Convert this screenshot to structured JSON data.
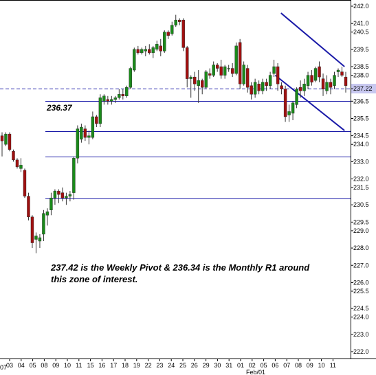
{
  "chart_data": {
    "type": "candlestick",
    "colors": {
      "up": "#1a8a1a",
      "down": "#a01010",
      "level_line": "#1a1aa8",
      "channel": "#1a1aa8",
      "pivot_line": "#1a1aa8",
      "price_box": "#c8c8f0"
    },
    "ylim": [
      221.7,
      242.3
    ],
    "y_ticks": [
      "242.0",
      "241.0",
      "240.5",
      "239.5",
      "238.5",
      "238.0",
      "237.22",
      "236.5",
      "235.5",
      "234.5",
      "234.0",
      "233.0",
      "232.0",
      "231.5",
      "230.5",
      "229.5",
      "229.0",
      "228.0",
      "227.0",
      "226.0",
      "225.5",
      "224.5",
      "224.0",
      "223.0",
      "222.0"
    ],
    "x_ticks": [
      "03",
      "04",
      "05",
      "08",
      "09",
      "10",
      "11",
      "15",
      "16",
      "17",
      "18",
      "19",
      "22",
      "23",
      "24",
      "25",
      "26",
      "29",
      "30",
      "31",
      "01",
      "02",
      "05",
      "06",
      "07",
      "08",
      "09",
      "10",
      "11"
    ],
    "x_tick_edge_left": "07",
    "x_tick_month": "Feb/01",
    "current_price": 237.22,
    "levels": [
      236.5,
      234.75,
      233.3,
      230.85
    ],
    "level_label": "236.37",
    "annotation_lines": [
      "237.42 is the Weekly Pivot & 236.34 is the Monthly R1 around",
      "this zone of interest."
    ],
    "channel": {
      "upper": [
        [
          23.5,
          241.6
        ],
        [
          29.0,
          238.5
        ]
      ],
      "lower": [
        [
          23.0,
          238.0
        ],
        [
          29.0,
          234.8
        ]
      ]
    },
    "candles": [
      {
        "o": 234.5,
        "h": 234.7,
        "l": 233.3,
        "c": 234.2
      },
      {
        "o": 234.0,
        "h": 234.7,
        "l": 233.9,
        "c": 234.6
      },
      {
        "o": 234.6,
        "h": 234.7,
        "l": 233.6,
        "c": 233.7
      },
      {
        "o": 233.6,
        "h": 233.7,
        "l": 233.0,
        "c": 233.1
      },
      {
        "o": 233.1,
        "h": 233.2,
        "l": 232.6,
        "c": 232.7
      },
      {
        "o": 232.6,
        "h": 233.2,
        "l": 232.4,
        "c": 232.8
      },
      {
        "o": 232.5,
        "h": 232.6,
        "l": 230.9,
        "c": 231.0
      },
      {
        "o": 231.0,
        "h": 231.2,
        "l": 229.6,
        "c": 229.8
      },
      {
        "o": 229.8,
        "h": 229.9,
        "l": 228.0,
        "c": 228.3
      },
      {
        "o": 228.5,
        "h": 228.9,
        "l": 227.7,
        "c": 228.7
      },
      {
        "o": 228.4,
        "h": 228.8,
        "l": 228.0,
        "c": 228.6
      },
      {
        "o": 228.8,
        "h": 230.2,
        "l": 228.4,
        "c": 230.0
      },
      {
        "o": 229.9,
        "h": 230.3,
        "l": 229.3,
        "c": 230.1
      },
      {
        "o": 230.2,
        "h": 231.2,
        "l": 229.9,
        "c": 230.9
      },
      {
        "o": 230.9,
        "h": 231.4,
        "l": 230.5,
        "c": 231.3
      },
      {
        "o": 231.3,
        "h": 231.4,
        "l": 230.6,
        "c": 231.1
      },
      {
        "o": 231.2,
        "h": 231.5,
        "l": 230.7,
        "c": 230.9
      },
      {
        "o": 230.9,
        "h": 231.2,
        "l": 230.5,
        "c": 231.0
      },
      {
        "o": 231.0,
        "h": 231.3,
        "l": 230.7,
        "c": 231.1
      },
      {
        "o": 231.2,
        "h": 233.3,
        "l": 230.8,
        "c": 233.2
      },
      {
        "o": 233.2,
        "h": 235.1,
        "l": 232.9,
        "c": 234.9
      },
      {
        "o": 234.3,
        "h": 235.2,
        "l": 234.1,
        "c": 235.0
      },
      {
        "o": 234.9,
        "h": 235.1,
        "l": 234.2,
        "c": 234.4
      },
      {
        "o": 234.4,
        "h": 234.8,
        "l": 234.0,
        "c": 234.5
      },
      {
        "o": 234.4,
        "h": 235.9,
        "l": 234.3,
        "c": 235.6
      },
      {
        "o": 235.6,
        "h": 235.7,
        "l": 235.0,
        "c": 235.2
      },
      {
        "o": 235.2,
        "h": 236.9,
        "l": 235.0,
        "c": 236.7
      },
      {
        "o": 236.5,
        "h": 236.9,
        "l": 236.3,
        "c": 236.8
      },
      {
        "o": 236.6,
        "h": 236.8,
        "l": 236.3,
        "c": 236.5
      },
      {
        "o": 236.5,
        "h": 236.8,
        "l": 236.3,
        "c": 236.6
      },
      {
        "o": 236.6,
        "h": 236.8,
        "l": 236.4,
        "c": 236.7
      },
      {
        "o": 236.7,
        "h": 237.2,
        "l": 236.6,
        "c": 236.9
      },
      {
        "o": 236.9,
        "h": 237.2,
        "l": 236.6,
        "c": 236.8
      },
      {
        "o": 236.8,
        "h": 237.4,
        "l": 236.7,
        "c": 237.3
      },
      {
        "o": 237.3,
        "h": 238.5,
        "l": 237.2,
        "c": 238.4
      },
      {
        "o": 238.3,
        "h": 239.6,
        "l": 238.2,
        "c": 239.5
      },
      {
        "o": 239.5,
        "h": 239.7,
        "l": 239.2,
        "c": 239.3
      },
      {
        "o": 239.3,
        "h": 239.6,
        "l": 239.2,
        "c": 239.5
      },
      {
        "o": 239.4,
        "h": 239.7,
        "l": 239.1,
        "c": 239.5
      },
      {
        "o": 239.5,
        "h": 239.8,
        "l": 239.2,
        "c": 239.3
      },
      {
        "o": 239.3,
        "h": 239.7,
        "l": 239.0,
        "c": 239.6
      },
      {
        "o": 239.5,
        "h": 240.0,
        "l": 239.4,
        "c": 239.8
      },
      {
        "o": 239.7,
        "h": 240.1,
        "l": 239.1,
        "c": 239.4
      },
      {
        "o": 239.4,
        "h": 240.6,
        "l": 239.3,
        "c": 240.5
      },
      {
        "o": 240.5,
        "h": 240.6,
        "l": 240.1,
        "c": 240.3
      },
      {
        "o": 240.4,
        "h": 241.1,
        "l": 240.3,
        "c": 240.9
      },
      {
        "o": 240.9,
        "h": 241.5,
        "l": 240.8,
        "c": 241.2
      },
      {
        "o": 241.2,
        "h": 241.3,
        "l": 240.9,
        "c": 241.1
      },
      {
        "o": 241.2,
        "h": 241.3,
        "l": 239.4,
        "c": 239.6
      },
      {
        "o": 239.6,
        "h": 239.7,
        "l": 237.3,
        "c": 237.8
      },
      {
        "o": 237.8,
        "h": 238.0,
        "l": 236.7,
        "c": 237.9
      },
      {
        "o": 237.9,
        "h": 238.2,
        "l": 237.1,
        "c": 237.5
      },
      {
        "o": 237.4,
        "h": 238.3,
        "l": 236.4,
        "c": 237.7
      },
      {
        "o": 237.7,
        "h": 237.8,
        "l": 236.9,
        "c": 237.3
      },
      {
        "o": 237.3,
        "h": 238.3,
        "l": 237.2,
        "c": 238.2
      },
      {
        "o": 238.1,
        "h": 238.4,
        "l": 237.8,
        "c": 238.0
      },
      {
        "o": 238.0,
        "h": 238.8,
        "l": 237.9,
        "c": 238.6
      },
      {
        "o": 238.6,
        "h": 238.7,
        "l": 238.2,
        "c": 238.4
      },
      {
        "o": 238.5,
        "h": 238.9,
        "l": 237.8,
        "c": 238.0
      },
      {
        "o": 238.0,
        "h": 238.6,
        "l": 237.8,
        "c": 238.5
      },
      {
        "o": 238.4,
        "h": 238.6,
        "l": 238.2,
        "c": 238.4
      },
      {
        "o": 238.4,
        "h": 238.7,
        "l": 237.9,
        "c": 238.1
      },
      {
        "o": 238.1,
        "h": 239.9,
        "l": 238.0,
        "c": 239.7
      },
      {
        "o": 239.9,
        "h": 240.1,
        "l": 237.2,
        "c": 237.5
      },
      {
        "o": 237.5,
        "h": 238.8,
        "l": 237.4,
        "c": 238.6
      },
      {
        "o": 238.4,
        "h": 238.6,
        "l": 237.0,
        "c": 237.3
      },
      {
        "o": 237.4,
        "h": 237.6,
        "l": 236.6,
        "c": 236.9
      },
      {
        "o": 236.9,
        "h": 237.8,
        "l": 236.7,
        "c": 237.6
      },
      {
        "o": 237.5,
        "h": 237.7,
        "l": 236.9,
        "c": 237.1
      },
      {
        "o": 237.1,
        "h": 237.8,
        "l": 236.9,
        "c": 237.6
      },
      {
        "o": 237.6,
        "h": 237.8,
        "l": 237.1,
        "c": 237.4
      },
      {
        "o": 237.4,
        "h": 238.2,
        "l": 237.2,
        "c": 238.0
      },
      {
        "o": 238.1,
        "h": 238.9,
        "l": 237.9,
        "c": 238.5
      },
      {
        "o": 238.5,
        "h": 238.7,
        "l": 237.1,
        "c": 237.5
      },
      {
        "o": 237.4,
        "h": 237.6,
        "l": 236.9,
        "c": 237.2
      },
      {
        "o": 237.2,
        "h": 237.4,
        "l": 235.3,
        "c": 235.6
      },
      {
        "o": 235.7,
        "h": 236.3,
        "l": 235.3,
        "c": 235.9
      },
      {
        "o": 235.8,
        "h": 236.5,
        "l": 235.4,
        "c": 236.4
      },
      {
        "o": 236.3,
        "h": 237.3,
        "l": 236.1,
        "c": 237.2
      },
      {
        "o": 237.3,
        "h": 237.7,
        "l": 236.7,
        "c": 237.1
      },
      {
        "o": 237.1,
        "h": 237.8,
        "l": 236.8,
        "c": 237.5
      },
      {
        "o": 237.4,
        "h": 238.2,
        "l": 237.2,
        "c": 238.0
      },
      {
        "o": 238.0,
        "h": 238.3,
        "l": 237.4,
        "c": 237.6
      },
      {
        "o": 237.7,
        "h": 238.5,
        "l": 237.6,
        "c": 238.4
      },
      {
        "o": 238.5,
        "h": 238.8,
        "l": 237.6,
        "c": 237.9
      },
      {
        "o": 237.8,
        "h": 238.1,
        "l": 236.8,
        "c": 237.2
      },
      {
        "o": 237.1,
        "h": 238.0,
        "l": 236.9,
        "c": 237.6
      },
      {
        "o": 237.6,
        "h": 237.8,
        "l": 236.9,
        "c": 237.3
      },
      {
        "o": 237.4,
        "h": 238.2,
        "l": 237.2,
        "c": 238.0
      },
      {
        "o": 238.2,
        "h": 238.4,
        "l": 237.9,
        "c": 238.3
      },
      {
        "o": 238.2,
        "h": 238.5,
        "l": 237.9,
        "c": 238.0
      },
      {
        "o": 237.9,
        "h": 238.2,
        "l": 237.0,
        "c": 237.4
      }
    ]
  }
}
